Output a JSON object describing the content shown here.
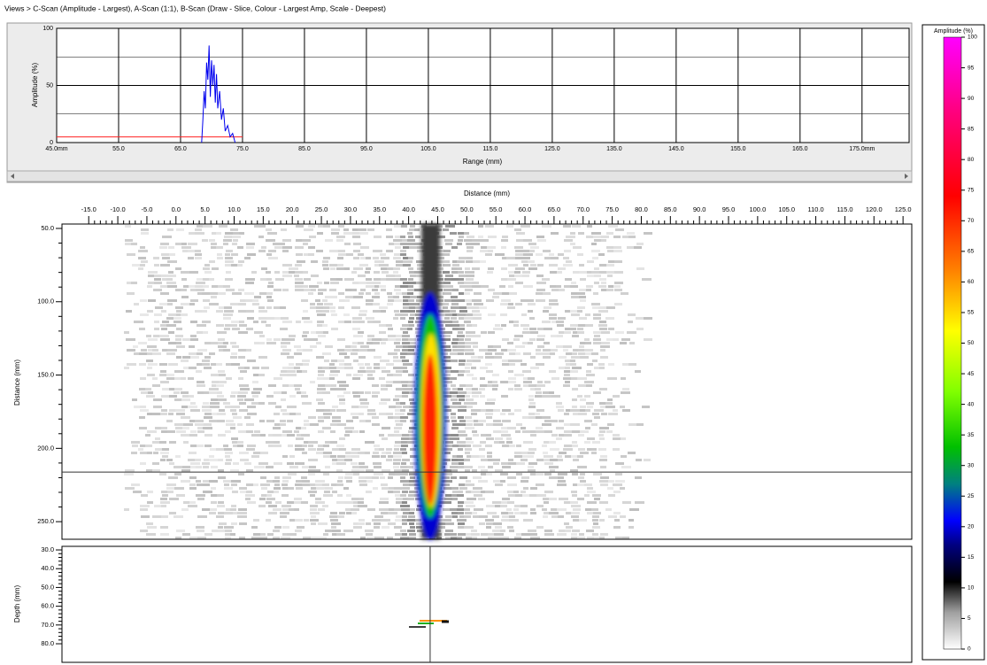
{
  "header": {
    "title": "Views > C-Scan (Amplitude - Largest),  A-Scan (1:1),  B-Scan (Draw - Slice, Colour - Largest Amp, Scale - Deepest)"
  },
  "a_scan": {
    "type": "line",
    "ylabel": "Amplitude (%)",
    "xlabel": "Range (mm)",
    "xlim": [
      45,
      182.6
    ],
    "ylim": [
      0,
      100
    ],
    "yticks": [
      0,
      50,
      100
    ],
    "yminor": [
      25,
      75
    ],
    "grid": true,
    "xticks": [
      {
        "value": 45,
        "label": "45.0mm"
      },
      {
        "value": 55,
        "label": "55.0"
      },
      {
        "value": 65,
        "label": "65.0"
      },
      {
        "value": 75,
        "label": "75.0"
      },
      {
        "value": 85,
        "label": "85.0"
      },
      {
        "value": 95,
        "label": "95.0"
      },
      {
        "value": 105,
        "label": "105.0"
      },
      {
        "value": 115,
        "label": "115.0"
      },
      {
        "value": 125,
        "label": "125.0"
      },
      {
        "value": 135,
        "label": "135.0"
      },
      {
        "value": 145,
        "label": "145.0"
      },
      {
        "value": 155,
        "label": "155.0"
      },
      {
        "value": 165,
        "label": "165.0"
      },
      {
        "value": 175,
        "label": "175.0mm"
      }
    ],
    "series": [
      {
        "color": "#ff2020",
        "x": [
          45,
          75
        ],
        "values": [
          5,
          5
        ]
      },
      {
        "color": "#0000ee",
        "x": [
          68.4,
          68.6,
          68.8,
          69.0,
          69.2,
          69.4,
          69.6,
          69.8,
          70.0,
          70.2,
          70.4,
          70.6,
          70.8,
          71.0,
          71.3,
          71.6,
          71.9,
          72.2,
          72.6,
          73.0,
          73.4,
          73.8
        ],
        "values": [
          0,
          20,
          45,
          30,
          70,
          55,
          85,
          40,
          72,
          50,
          68,
          35,
          60,
          30,
          45,
          20,
          30,
          10,
          15,
          5,
          8,
          0
        ]
      }
    ]
  },
  "c_scan": {
    "xlabel": "Distance (mm)",
    "ylabel": "Distance (mm)",
    "xlim": [
      -19.6,
      126.5
    ],
    "ylim": [
      262,
      47
    ],
    "xticks": [
      {
        "value": -15,
        "label": "-15.0"
      },
      {
        "value": -10,
        "label": "-10.0"
      },
      {
        "value": -5,
        "label": "-5.0"
      },
      {
        "value": 0,
        "label": "0.0"
      },
      {
        "value": 5,
        "label": "5.0"
      },
      {
        "value": 10,
        "label": "10.0"
      },
      {
        "value": 15,
        "label": "15.0"
      },
      {
        "value": 20,
        "label": "20.0"
      },
      {
        "value": 25,
        "label": "25.0"
      },
      {
        "value": 30,
        "label": "30.0"
      },
      {
        "value": 35,
        "label": "35.0"
      },
      {
        "value": 40,
        "label": "40.0"
      },
      {
        "value": 45,
        "label": "45.0"
      },
      {
        "value": 50,
        "label": "50.0"
      },
      {
        "value": 55,
        "label": "55.0"
      },
      {
        "value": 60,
        "label": "60.0"
      },
      {
        "value": 65,
        "label": "65.0"
      },
      {
        "value": 70,
        "label": "70.0"
      },
      {
        "value": 75,
        "label": "75.0"
      },
      {
        "value": 80,
        "label": "80.0"
      },
      {
        "value": 85,
        "label": "85.0"
      },
      {
        "value": 90,
        "label": "90.0"
      },
      {
        "value": 95,
        "label": "95.0"
      },
      {
        "value": 100,
        "label": "100.0"
      },
      {
        "value": 105,
        "label": "105.0"
      },
      {
        "value": 110,
        "label": "110.0"
      },
      {
        "value": 115,
        "label": "115.0"
      },
      {
        "value": 120,
        "label": "120.0"
      },
      {
        "value": 125,
        "label": "125.0"
      }
    ],
    "yticks": [
      {
        "value": 50,
        "label": "50.0"
      },
      {
        "value": 100,
        "label": "100.0"
      },
      {
        "value": 150,
        "label": "150.0"
      },
      {
        "value": 200,
        "label": "200.0"
      },
      {
        "value": 250,
        "label": "250.0"
      }
    ],
    "cursor": {
      "x": 43.7,
      "y": 216.2
    }
  },
  "b_scan": {
    "ylabel": "Depth (mm)",
    "ylim": [
      89.9,
      28.1
    ],
    "yticks": [
      {
        "value": 30,
        "label": "30.0"
      },
      {
        "value": 40,
        "label": "40.0"
      },
      {
        "value": 50,
        "label": "50.0"
      },
      {
        "value": 60,
        "label": "60.0"
      },
      {
        "value": 70,
        "label": "70.0"
      },
      {
        "value": 80,
        "label": "80.0"
      }
    ]
  },
  "colorbar": {
    "title": "Amplitude (%)",
    "ylim": [
      0,
      100
    ],
    "yticks": [
      0,
      5,
      10,
      15,
      20,
      25,
      30,
      35,
      40,
      45,
      50,
      55,
      60,
      65,
      70,
      75,
      80,
      85,
      90,
      95,
      100
    ],
    "stops": [
      {
        "value": 0,
        "color": "#ffffff"
      },
      {
        "value": 6,
        "color": "#a0a0a0"
      },
      {
        "value": 11,
        "color": "#000000"
      },
      {
        "value": 17,
        "color": "#000080"
      },
      {
        "value": 21,
        "color": "#0000ff"
      },
      {
        "value": 27,
        "color": "#008080"
      },
      {
        "value": 33,
        "color": "#00c000"
      },
      {
        "value": 42,
        "color": "#80ff00"
      },
      {
        "value": 52,
        "color": "#ffff00"
      },
      {
        "value": 62,
        "color": "#ff8000"
      },
      {
        "value": 74,
        "color": "#ff0000"
      },
      {
        "value": 88,
        "color": "#ff0080"
      },
      {
        "value": 100,
        "color": "#ff00ff"
      }
    ]
  }
}
